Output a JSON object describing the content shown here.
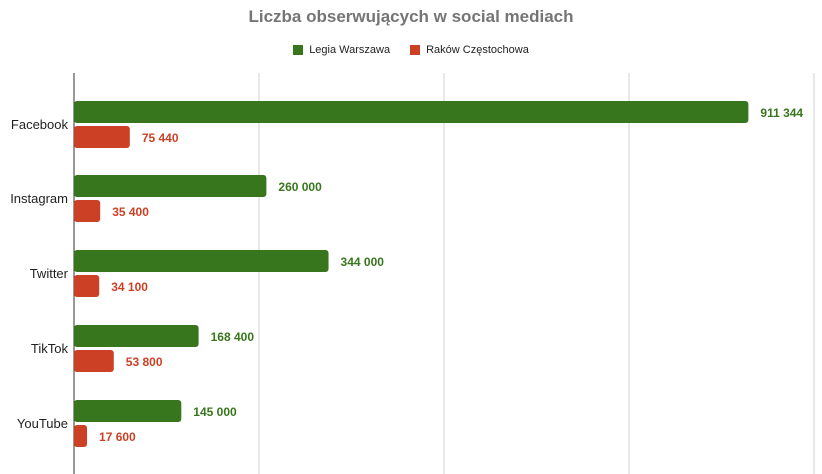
{
  "chart_data": {
    "type": "bar",
    "orientation": "horizontal",
    "title": "Liczba obserwujących w social mediach",
    "categories": [
      "Facebook",
      "Instagram",
      "Twitter",
      "TikTok",
      "YouTube"
    ],
    "series": [
      {
        "name": "Legia Warszawa",
        "color": "#38761d",
        "values": [
          911344,
          260000,
          344000,
          168400,
          145000
        ],
        "labels": [
          "911 344",
          "260 000",
          "344 000",
          "168 400",
          "145 000"
        ]
      },
      {
        "name": "Raków Częstochowa",
        "color": "#cc4125",
        "values": [
          75440,
          35400,
          34100,
          53800,
          17600
        ],
        "labels": [
          "75 440",
          "35 400",
          "34 100",
          "53 800",
          "17 600"
        ]
      }
    ],
    "xlim": [
      0,
      1000000
    ],
    "grid": true,
    "legend_position": "top"
  }
}
